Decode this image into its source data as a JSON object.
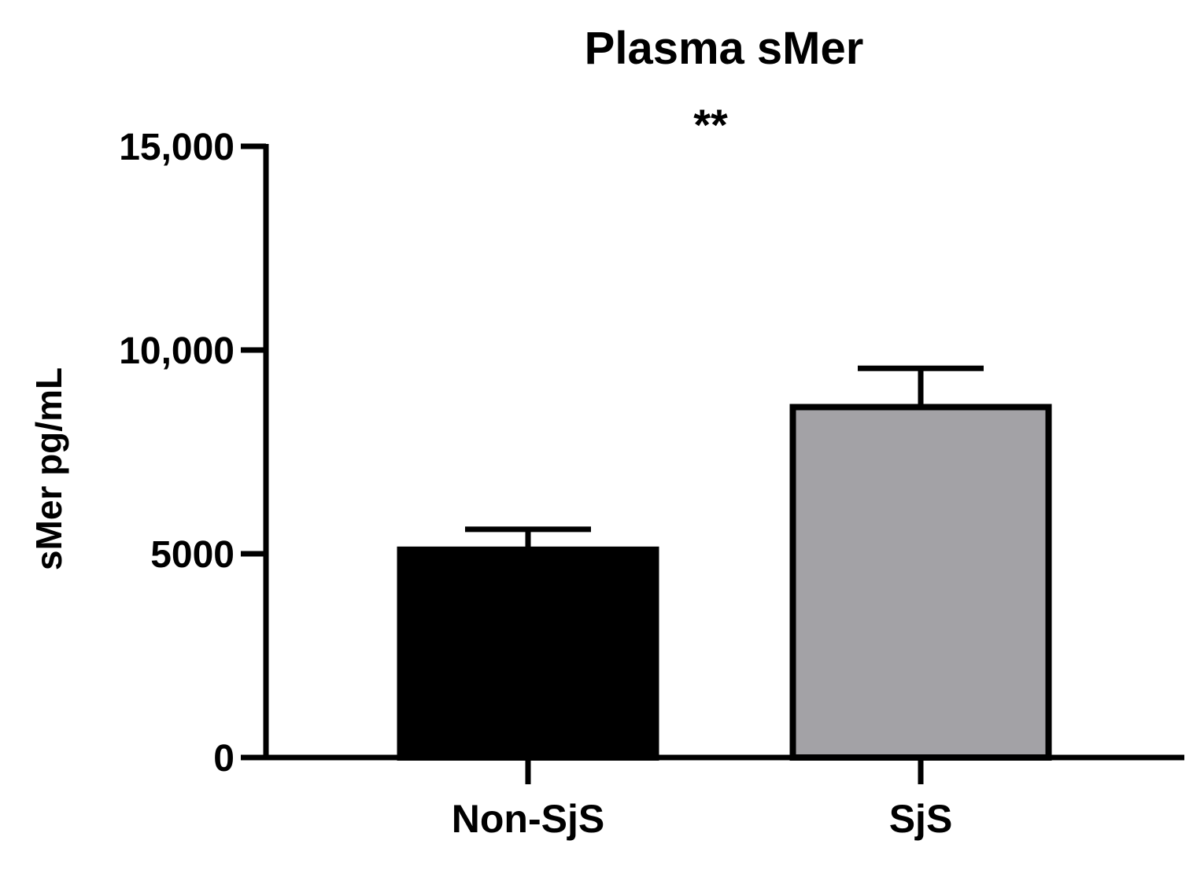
{
  "chart_data": {
    "type": "bar",
    "title": "Plasma sMer",
    "significance": "**",
    "xlabel": "",
    "ylabel": "sMer pg/mL",
    "categories": [
      "Non-SjS",
      "SjS"
    ],
    "values": [
      5100,
      8600
    ],
    "error_upper": [
      5600,
      9550
    ],
    "ylim": [
      0,
      15000
    ],
    "yticks": [
      0,
      5000,
      10000,
      15000
    ],
    "ytick_labels": [
      "0",
      "5000",
      "10,000",
      "15,000"
    ],
    "bar_colors": [
      "#000000",
      "#a3a2a6"
    ],
    "grid": false,
    "legend": "none"
  }
}
